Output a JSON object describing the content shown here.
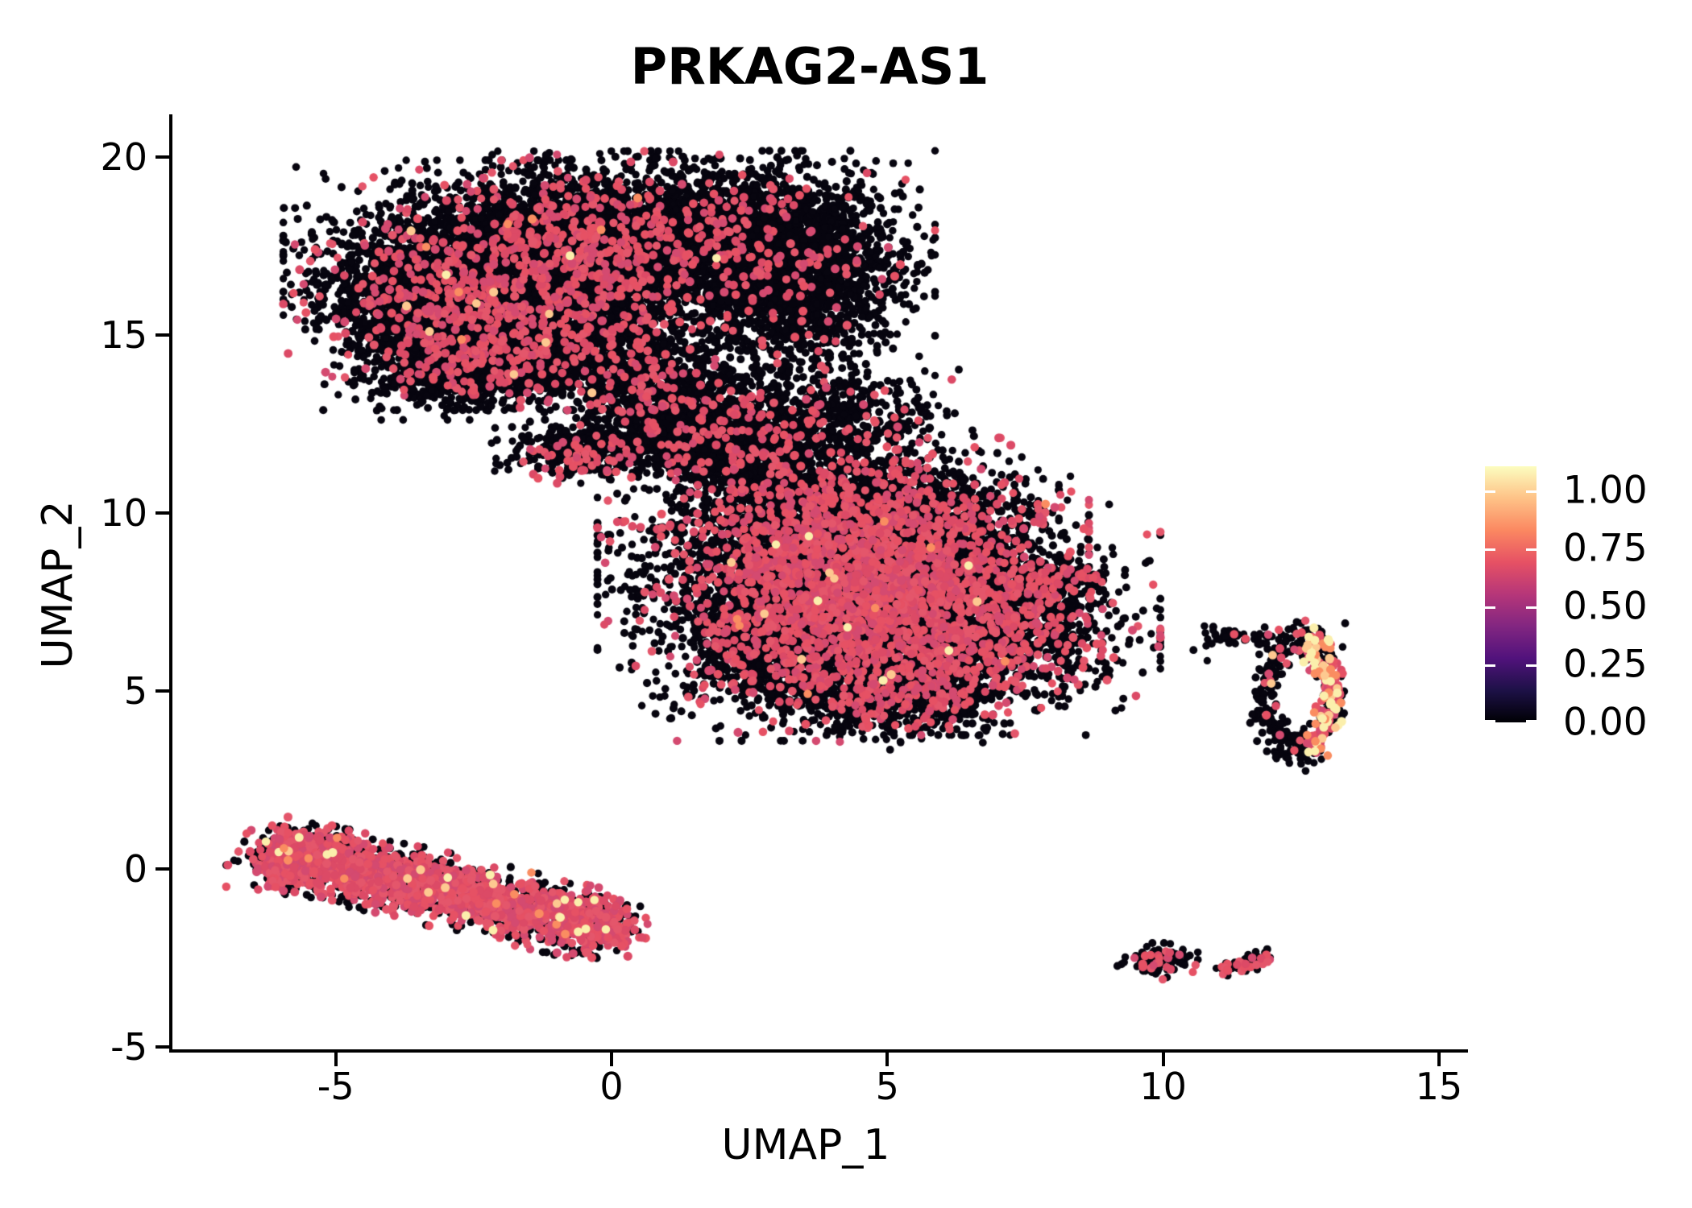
{
  "title": "PRKAG2-AS1",
  "chart_data": {
    "type": "scatter",
    "subtype": "umap-feature-plot",
    "title": "PRKAG2-AS1",
    "xlabel": "UMAP_1",
    "ylabel": "UMAP_2",
    "xlim": [
      -8.0,
      15.5
    ],
    "ylim": [
      -5.1,
      21.3
    ],
    "grid": false,
    "x_ticks": [
      -5,
      0,
      5,
      10,
      15
    ],
    "x_tick_labels": [
      "-5",
      "0",
      "5",
      "10",
      "15"
    ],
    "y_ticks": [
      -5,
      0,
      5,
      10,
      15,
      20
    ],
    "y_tick_labels": [
      "-5",
      "0",
      "5",
      "10",
      "15",
      "20"
    ],
    "colorbar": {
      "position": "right",
      "colormap": "magma",
      "vmin": 0.0,
      "vmax": 1.104,
      "tick_values": [
        0.0,
        0.25,
        0.5,
        0.75,
        1.0
      ],
      "tick_labels": [
        "0.00",
        "0.25",
        "0.50",
        "0.75",
        "1.00"
      ],
      "gradient_stops": [
        "#000004",
        "#1D1147",
        "#51127C",
        "#822681",
        "#B63679",
        "#E65164",
        "#FB8861",
        "#FEC287",
        "#FCFDBF"
      ]
    },
    "point_colors": {
      "zero_expression": "#07050f",
      "mid_expression_palette": [
        "#E4566B",
        "#E65164",
        "#DC4A66",
        "#D44A70"
      ],
      "high_expression_palette": [
        "#FBEFAC",
        "#FDC990",
        "#FA8D61"
      ]
    },
    "clusters": [
      {
        "name": "top-left-lobe-core",
        "kind": "gauss",
        "cx": -1.9,
        "cy": 16.4,
        "sx": 1.5,
        "sy": 1.3,
        "n": 4600,
        "p_mid": 0.1,
        "p_high": 0.0015
      },
      {
        "name": "top-left-lobe-upper",
        "kind": "gauss",
        "cx": -0.1,
        "cy": 17.6,
        "sx": 1.3,
        "sy": 0.95,
        "n": 2800,
        "p_mid": 0.1,
        "p_high": 0.001
      },
      {
        "name": "top-left-lobe-west",
        "kind": "gauss",
        "cx": -3.2,
        "cy": 15.8,
        "sx": 0.85,
        "sy": 0.9,
        "n": 1200,
        "p_mid": 0.08,
        "p_high": 0.002
      },
      {
        "name": "top-left-lobe-south",
        "kind": "gauss",
        "cx": -1.2,
        "cy": 14.5,
        "sx": 1.15,
        "sy": 0.6,
        "n": 1000,
        "p_mid": 0.1,
        "p_high": 0.001
      },
      {
        "name": "top-lobe-southwest",
        "kind": "gauss",
        "cx": -2.5,
        "cy": 14.1,
        "sx": 0.8,
        "sy": 0.55,
        "n": 700,
        "p_mid": 0.08,
        "p_high": 0
      },
      {
        "name": "top-right-lobe",
        "kind": "gauss",
        "cx": 3.3,
        "cy": 16.8,
        "sx": 0.95,
        "sy": 1.25,
        "n": 2300,
        "p_mid": 0.05,
        "p_high": 0
      },
      {
        "name": "top-lobes-join",
        "kind": "gauss",
        "cx": 1.9,
        "cy": 17.8,
        "sx": 0.85,
        "sy": 0.8,
        "n": 900,
        "p_mid": 0.07,
        "p_high": 0
      },
      {
        "name": "top-neck",
        "kind": "gauss",
        "cx": 0.9,
        "cy": 13.3,
        "sx": 0.78,
        "sy": 0.85,
        "n": 800,
        "p_mid": 0.1,
        "p_high": 0
      },
      {
        "name": "top-neck-lower",
        "kind": "gauss",
        "cx": 1.9,
        "cy": 12.2,
        "sx": 0.8,
        "sy": 0.6,
        "n": 600,
        "p_mid": 0.09,
        "p_high": 0
      },
      {
        "name": "top-left-spur",
        "kind": "gauss",
        "cx": -0.5,
        "cy": 11.7,
        "sx": 0.62,
        "sy": 0.32,
        "n": 380,
        "p_mid": 0.12,
        "p_high": 0
      },
      {
        "name": "bridge-to-middle",
        "kind": "line",
        "x1": 1.2,
        "y1": 12.0,
        "x2": 3.4,
        "y2": 10.6,
        "s": 0.45,
        "n": 500,
        "p_mid": 0.08,
        "p_high": 0
      },
      {
        "name": "below-right-lobe",
        "kind": "gauss",
        "cx": 3.6,
        "cy": 12.4,
        "sx": 1.1,
        "sy": 0.8,
        "n": 800,
        "p_mid": 0.06,
        "p_high": 0
      },
      {
        "name": "middle-core-upper",
        "kind": "gauss",
        "cx": 4.2,
        "cy": 8.6,
        "sx": 1.65,
        "sy": 1.3,
        "n": 4600,
        "p_mid": 0.22,
        "p_high": 0.003
      },
      {
        "name": "middle-core-lower",
        "kind": "gauss",
        "cx": 5.9,
        "cy": 7.0,
        "sx": 1.5,
        "sy": 1.2,
        "n": 3300,
        "p_mid": 0.25,
        "p_high": 0.003
      },
      {
        "name": "middle-west",
        "kind": "gauss",
        "cx": 3.2,
        "cy": 6.3,
        "sx": 1.05,
        "sy": 1.0,
        "n": 1400,
        "p_mid": 0.17,
        "p_high": 0.002
      },
      {
        "name": "middle-top-fringe",
        "kind": "gauss",
        "cx": 4.6,
        "cy": 10.3,
        "sx": 1.3,
        "sy": 0.55,
        "n": 800,
        "p_mid": 0.14,
        "p_high": 0
      },
      {
        "name": "middle-east-tip",
        "kind": "line",
        "x1": 7.6,
        "y1": 8.0,
        "x2": 8.85,
        "y2": 8.25,
        "s": 0.18,
        "n": 150,
        "p_mid": 0.18,
        "p_high": 0
      },
      {
        "name": "middle-bottom-fringe",
        "kind": "gauss",
        "cx": 5.2,
        "cy": 4.9,
        "sx": 1.0,
        "sy": 0.5,
        "n": 600,
        "p_mid": 0.2,
        "p_high": 0
      },
      {
        "name": "right-ring",
        "kind": "ring",
        "cx": 12.45,
        "cy": 4.95,
        "rx": 0.62,
        "ry": 1.55,
        "jitter": 0.2,
        "n": 430,
        "p_mid": 0.05,
        "p_high": 0.01,
        "hot_arc": [
          -75,
          80
        ],
        "hot_mid": 0.4,
        "hot_high": 0.25
      },
      {
        "name": "right-ring-tail",
        "kind": "line",
        "x1": 10.75,
        "y1": 6.6,
        "x2": 11.95,
        "y2": 6.45,
        "s": 0.12,
        "n": 55,
        "p_mid": 0.05,
        "p_high": 0
      },
      {
        "name": "bottom-left-band",
        "kind": "line",
        "x1": -6.1,
        "y1": 0.5,
        "x2": 0.15,
        "y2": -1.75,
        "s": 0.38,
        "n": 2500,
        "p_mid": 0.55,
        "p_high": 0.012
      },
      {
        "name": "bottom-left-west-bulge",
        "kind": "gauss",
        "cx": -5.5,
        "cy": 0.2,
        "sx": 0.55,
        "sy": 0.4,
        "n": 450,
        "p_mid": 0.5,
        "p_high": 0.01
      },
      {
        "name": "bottom-right-blob",
        "kind": "gauss",
        "cx": 9.9,
        "cy": -2.62,
        "sx": 0.27,
        "sy": 0.2,
        "n": 110,
        "p_mid": 0.22,
        "p_high": 0.01
      },
      {
        "name": "bottom-right-strip",
        "kind": "line",
        "x1": 11.05,
        "y1": -2.85,
        "x2": 12.0,
        "y2": -2.45,
        "s": 0.09,
        "n": 75,
        "p_mid": 0.3,
        "p_high": 0
      },
      {
        "name": "isolated-dots",
        "kind": "points",
        "pts": [
          [
            10.63,
            -2.55,
            0
          ],
          [
            5.05,
            3.35,
            0
          ],
          [
            6.65,
            3.75,
            0
          ],
          [
            10.55,
            6.15,
            0
          ],
          [
            10.8,
            5.85,
            0
          ],
          [
            13.3,
            6.9,
            0
          ],
          [
            -3.3,
            15.1,
            2
          ],
          [
            -2.72,
            14.88,
            2
          ]
        ]
      }
    ],
    "seed": 20240613
  }
}
